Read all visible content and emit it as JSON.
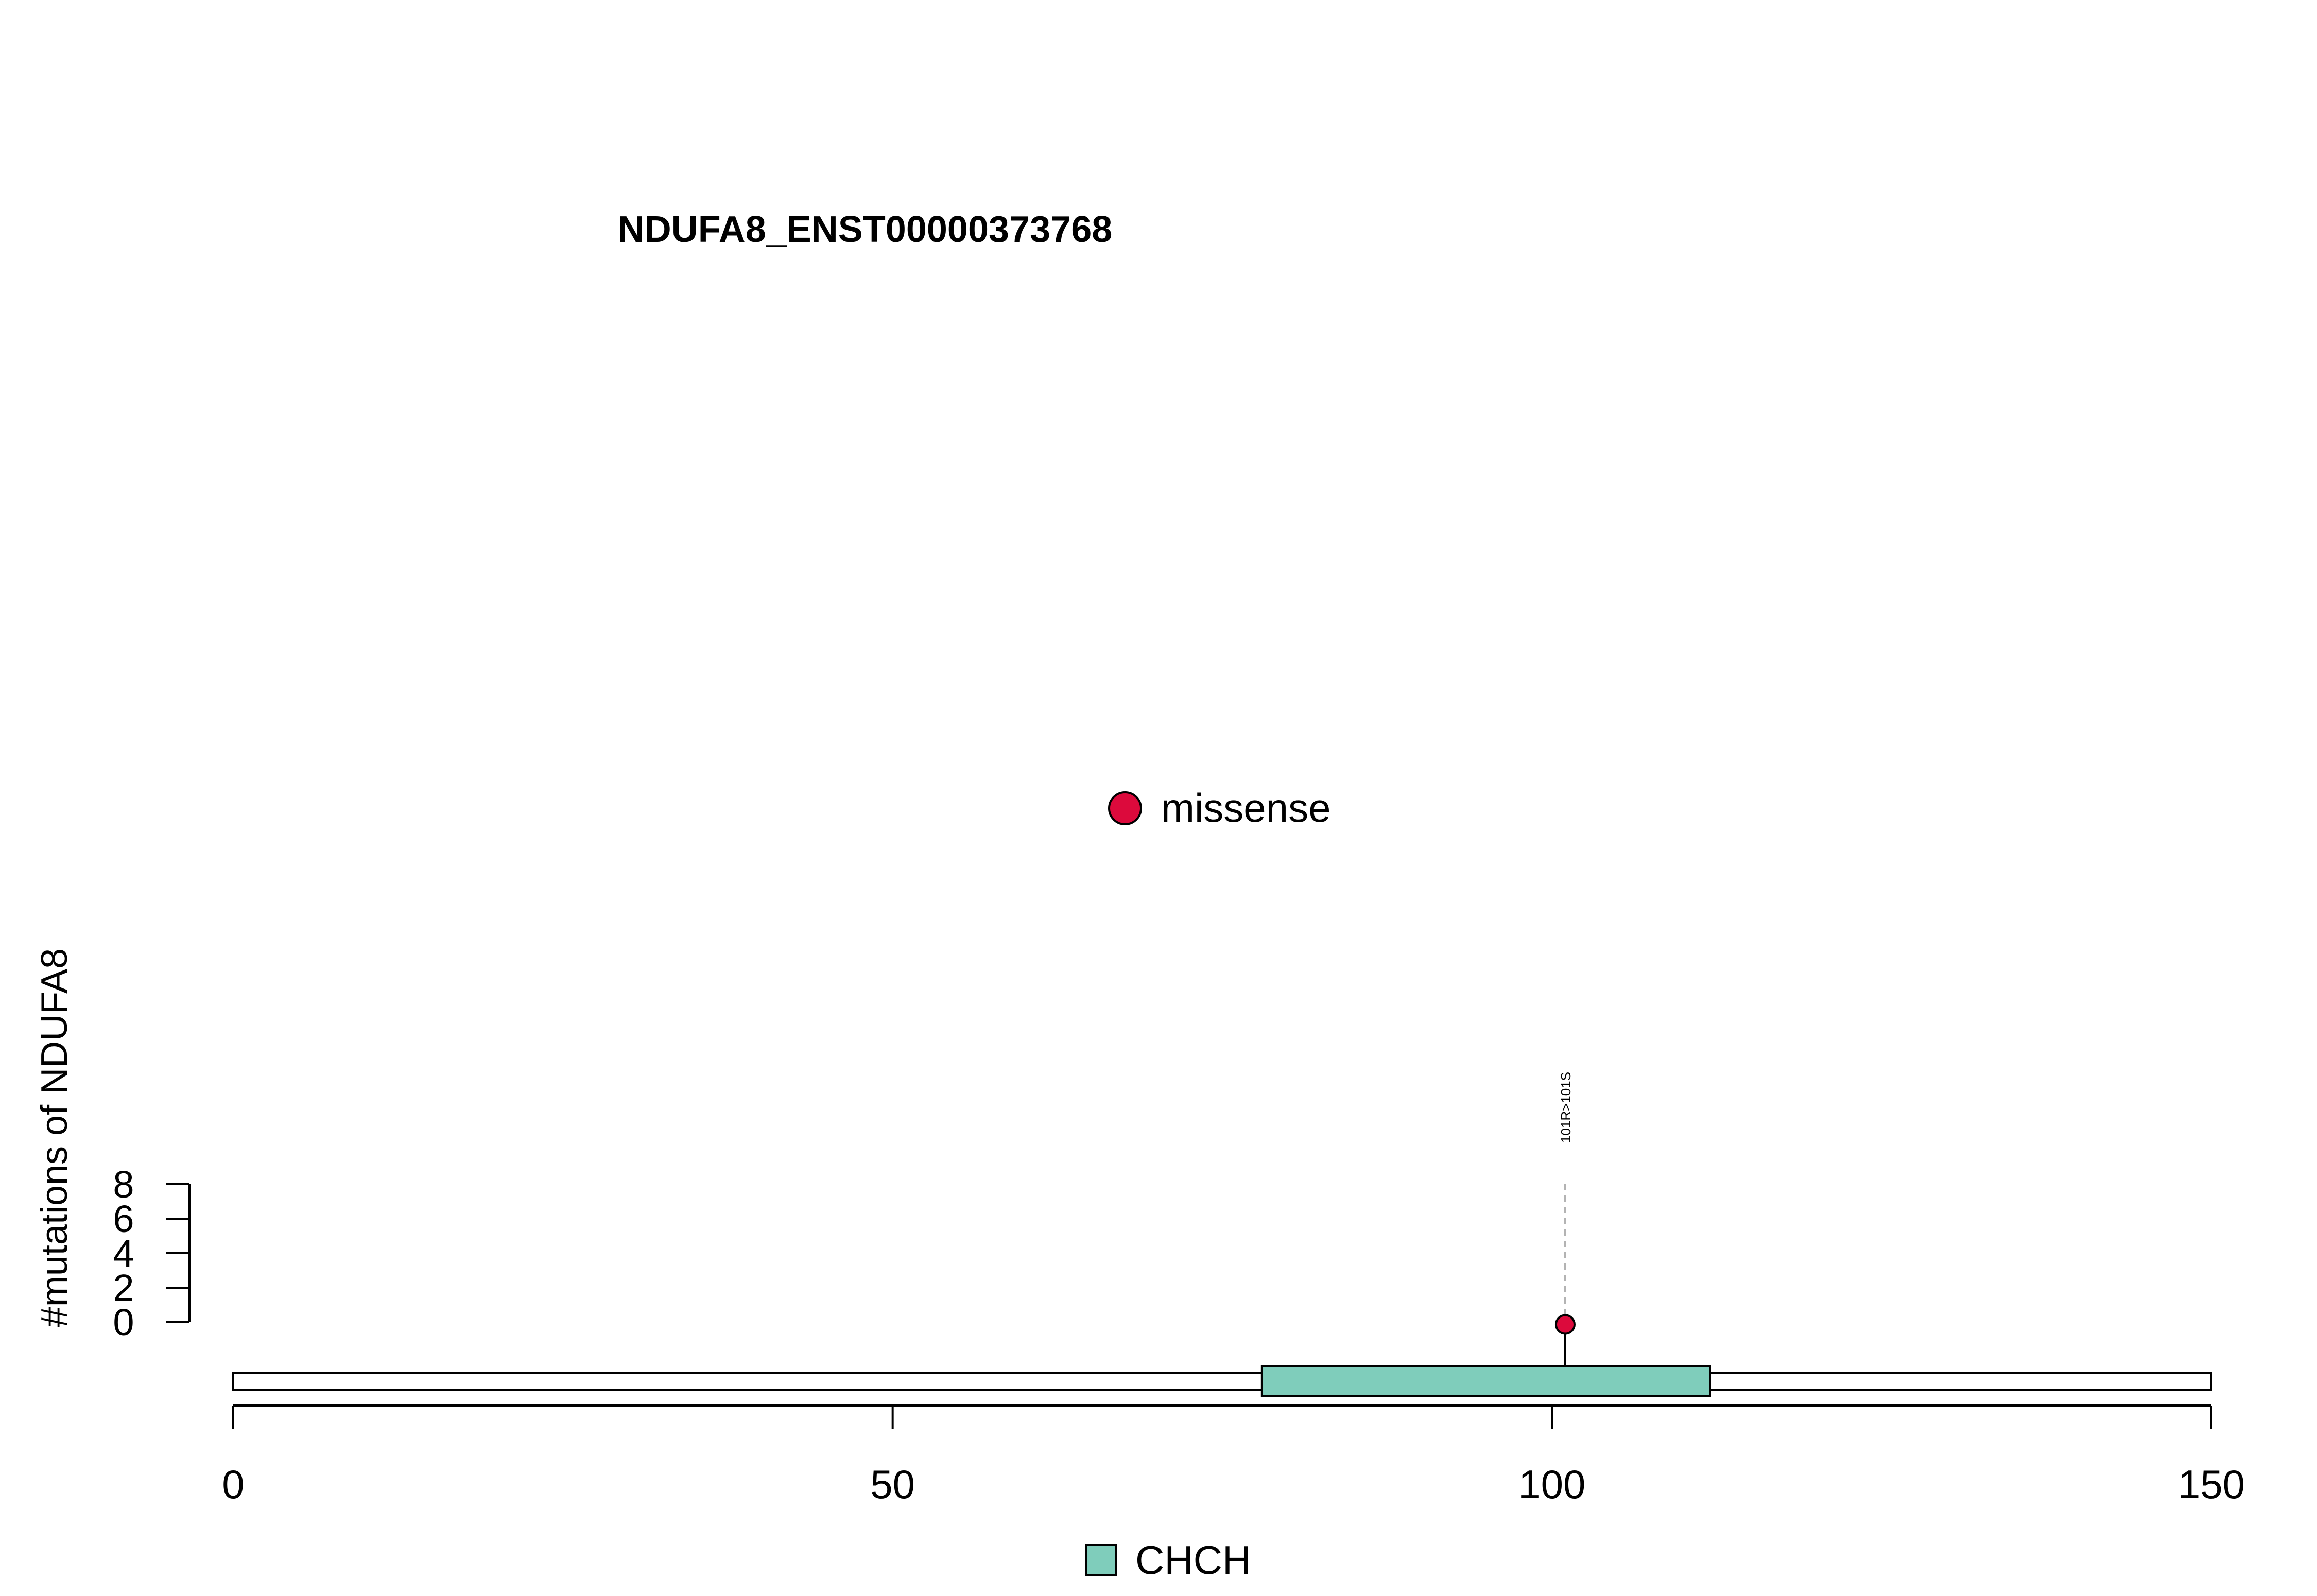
{
  "chart_data": {
    "type": "lollipop",
    "title": "NDUFA8_ENST00000373768",
    "ylabel": "#mutations of NDUFA8",
    "xlim": [
      0,
      150
    ],
    "x_ticks": [
      0,
      50,
      100,
      150
    ],
    "ylim": [
      0,
      8
    ],
    "y_ticks": [
      0,
      2,
      4,
      6,
      8
    ],
    "protein_length": 150,
    "domains": [
      {
        "name": "CHCH",
        "start": 78,
        "end": 112,
        "color": "#7fcdbb"
      }
    ],
    "mutations": [
      {
        "position": 101,
        "count": 1,
        "label": "101R>101S",
        "type": "missense",
        "color": "#dc0a3c"
      }
    ],
    "legend_mutation_types": [
      {
        "label": "missense",
        "color": "#dc0a3c"
      }
    ],
    "legend_domains": [
      {
        "label": "CHCH",
        "color": "#7fcdbb"
      }
    ]
  }
}
